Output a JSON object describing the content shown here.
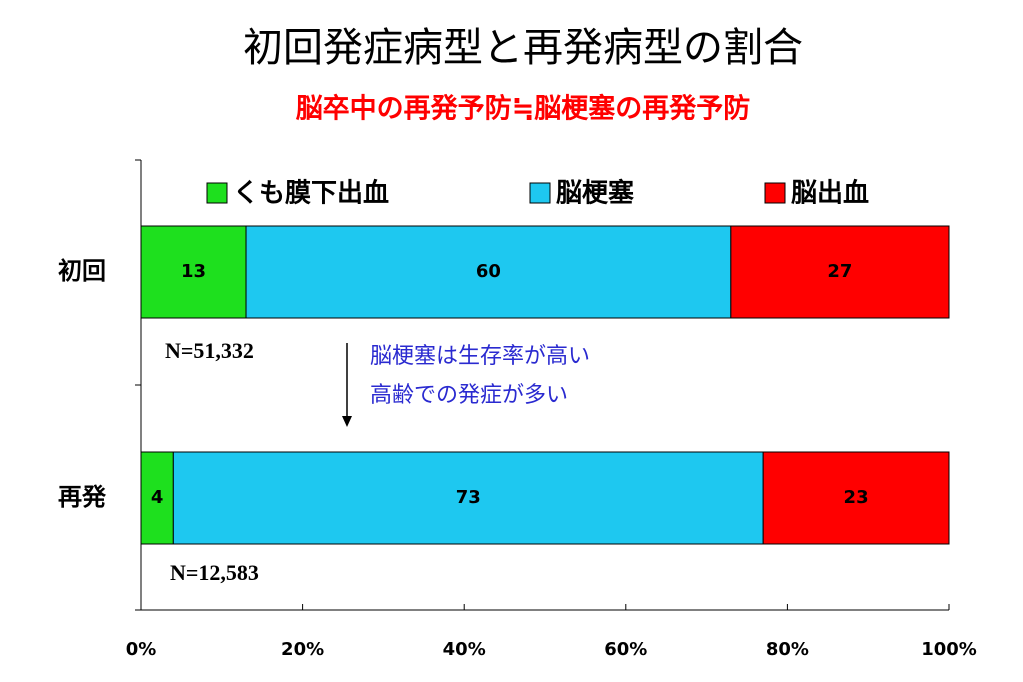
{
  "chart_data": {
    "type": "stacked-bar-horizontal",
    "title": "初回発症病型と再発病型の割合",
    "subtitle": "脳卒中の再発予防≒脳梗塞の再発予防",
    "categories": [
      "初回",
      "再発"
    ],
    "series": [
      {
        "name": "くも膜下出血",
        "color": "#1ee01e",
        "values": [
          13,
          4
        ]
      },
      {
        "name": "脳梗塞",
        "color": "#1ec8f0",
        "values": [
          60,
          73
        ]
      },
      {
        "name": "脳出血",
        "color": "#ff0000",
        "values": [
          27,
          23
        ]
      }
    ],
    "xlim": [
      0,
      100
    ],
    "xticks": [
      {
        "value": 0,
        "label": "0%"
      },
      {
        "value": 20,
        "label": "20%"
      },
      {
        "value": 40,
        "label": "40%"
      },
      {
        "value": 60,
        "label": "60%"
      },
      {
        "value": 80,
        "label": "80%"
      },
      {
        "value": 100,
        "label": "100%"
      }
    ],
    "annotations": [
      "N=51,332",
      "N=12,583",
      "脳梗塞は生存率が高い",
      "高齢での発症が多い"
    ]
  }
}
